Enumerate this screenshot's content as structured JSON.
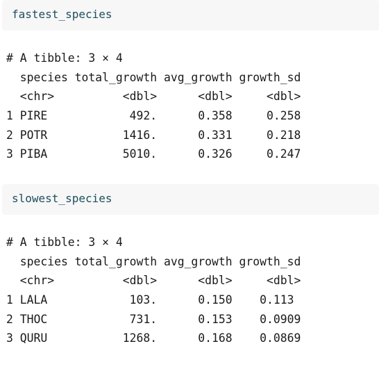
{
  "chunks": [
    {
      "code": "fastest_species",
      "output_lines": [
        "# A tibble: 3 × 4",
        "  species total_growth avg_growth growth_sd",
        "  <chr>          <dbl>      <dbl>     <dbl>",
        "1 PIRE            492.      0.358     0.258",
        "2 POTR           1416.      0.331     0.218",
        "3 PIBA           5010.      0.326     0.247"
      ]
    },
    {
      "code": "slowest_species",
      "output_lines": [
        "# A tibble: 3 × 4",
        "  species total_growth avg_growth growth_sd",
        "  <chr>          <dbl>      <dbl>     <dbl>",
        "1 LALA            103.      0.150    0.113 ",
        "2 THOC            731.      0.153    0.0909",
        "3 QURU           1268.      0.168    0.0869"
      ]
    }
  ]
}
